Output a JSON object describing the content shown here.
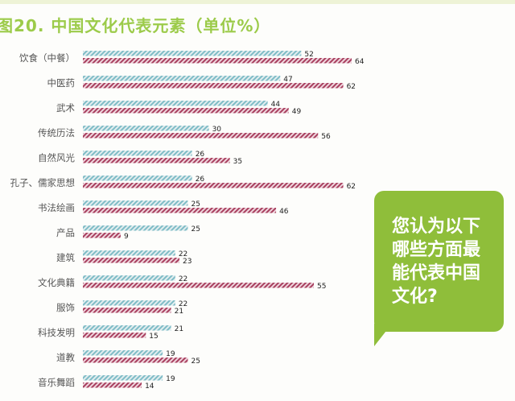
{
  "chart_data": {
    "type": "bar",
    "orientation": "horizontal",
    "title": "图20. 中国文化代表元素（单位%）",
    "categories": [
      "饮食（中餐）",
      "中医药",
      "武术",
      "传统历法",
      "自然风光",
      "孔子、儒家思想",
      "书法绘画",
      "产品",
      "建筑",
      "文化典籍",
      "服饰",
      "科技发明",
      "道教",
      "音乐舞蹈"
    ],
    "series": [
      {
        "values": [
          52,
          47,
          44,
          30,
          26,
          26,
          25,
          25,
          22,
          22,
          22,
          21,
          19,
          19
        ],
        "color": "#8fc7cf"
      },
      {
        "values": [
          64,
          62,
          49,
          56,
          35,
          62,
          46,
          9,
          23,
          55,
          21,
          15,
          25,
          14
        ],
        "color": "#b5506e"
      }
    ],
    "xlim": [
      0,
      64
    ],
    "grid": false,
    "pattern": "diagonal-hatch"
  },
  "callout": {
    "lines": [
      "您认为以下",
      "哪些方面最",
      "能代表中国",
      "文化?"
    ],
    "color": "#8fbe3a"
  }
}
